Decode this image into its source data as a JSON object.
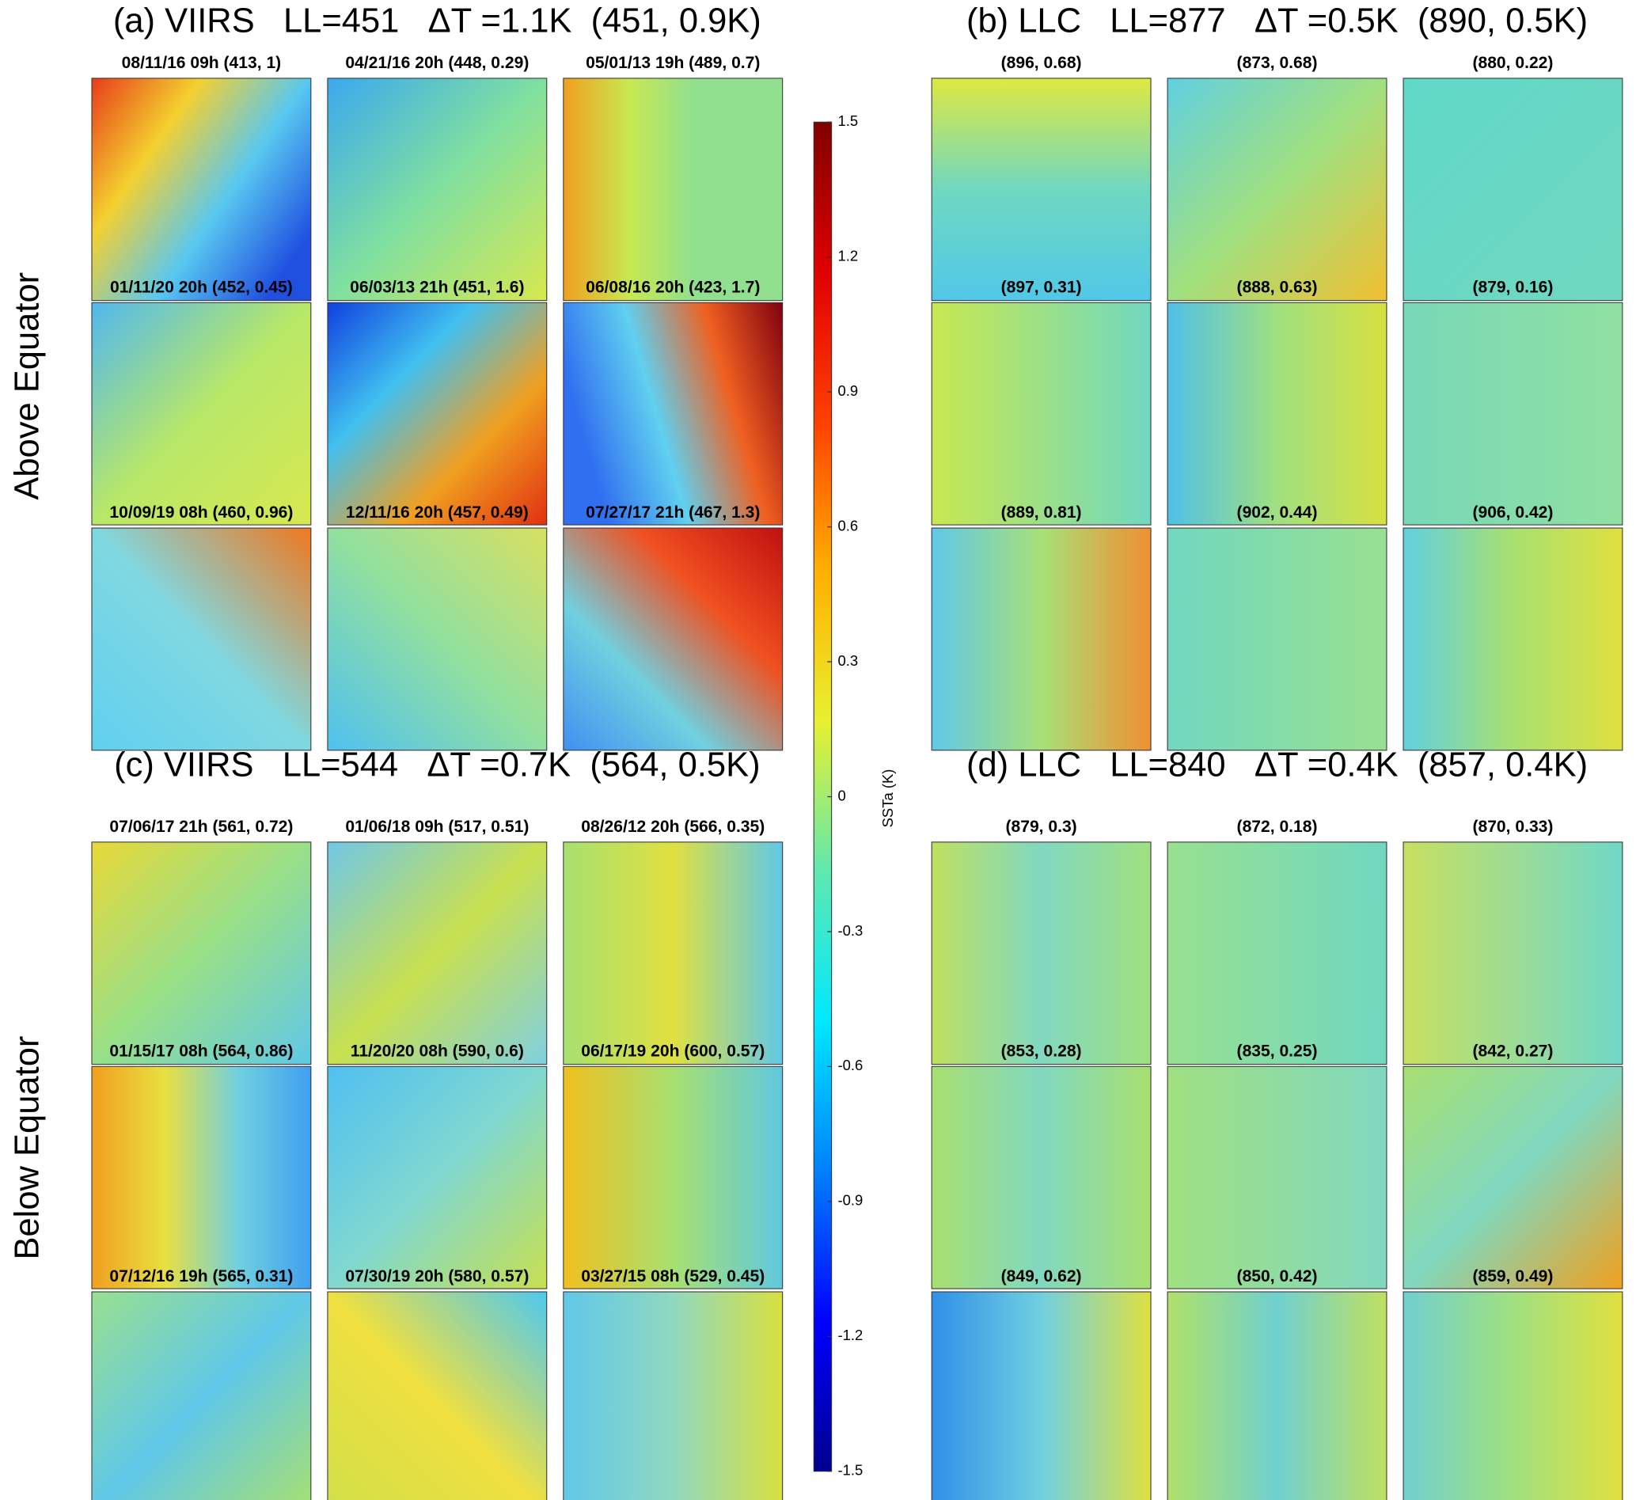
{
  "chart_data": {
    "type": "heatmap-grid",
    "row_labels": [
      "Above Equator",
      "Below Equator"
    ],
    "panels": [
      {
        "title": "(a) VIIRS   LL=451   ΔT =1.1K  (451, 0.9K)",
        "tiles": [
          "08/11/16 09h (413, 1)",
          "04/21/16 20h (448, 0.29)",
          "05/01/13 19h (489, 0.7)",
          "01/11/20 20h (452, 0.45)",
          "06/03/13 21h (451, 1.6)",
          "06/08/16 20h (423, 1.7)",
          "10/09/19 08h (460, 0.96)",
          "12/11/16 20h (457, 0.49)",
          "07/27/17 21h (467, 1.3)"
        ]
      },
      {
        "title": "(b) LLC   LL=877   ΔT =0.5K  (890, 0.5K)",
        "tiles": [
          "(896, 0.68)",
          "(873, 0.68)",
          "(880, 0.22)",
          "(897, 0.31)",
          "(888, 0.63)",
          "(879, 0.16)",
          "(889, 0.81)",
          "(902, 0.44)",
          "(906, 0.42)"
        ]
      },
      {
        "title": "(c) VIIRS   LL=544   ΔT =0.7K  (564, 0.5K)",
        "tiles": [
          "07/06/17 21h (561, 0.72)",
          "01/06/18 09h (517, 0.51)",
          "08/26/12 20h (566, 0.35)",
          "01/15/17 08h (564, 0.86)",
          "11/20/20 08h (590, 0.6)",
          "06/17/19 20h (600, 0.57)",
          "07/12/16 19h (565, 0.31)",
          "07/30/19 20h (580, 0.57)",
          "03/27/15 08h (529, 0.45)"
        ]
      },
      {
        "title": "(d) LLC   LL=840   ΔT =0.4K  (857, 0.4K)",
        "tiles": [
          "(879, 0.3)",
          "(872, 0.18)",
          "(870, 0.33)",
          "(853, 0.28)",
          "(835, 0.25)",
          "(842, 0.27)",
          "(849, 0.62)",
          "(850, 0.42)",
          "(859, 0.49)"
        ]
      }
    ],
    "colorbar": {
      "label": "SSTa (K)",
      "ylim": [
        -1.5,
        1.5
      ],
      "yticks": [
        1.5,
        1.2,
        0.9,
        0.6,
        0.3,
        0,
        -0.3,
        -0.6,
        -0.9,
        -1.2,
        -1.5
      ]
    }
  }
}
